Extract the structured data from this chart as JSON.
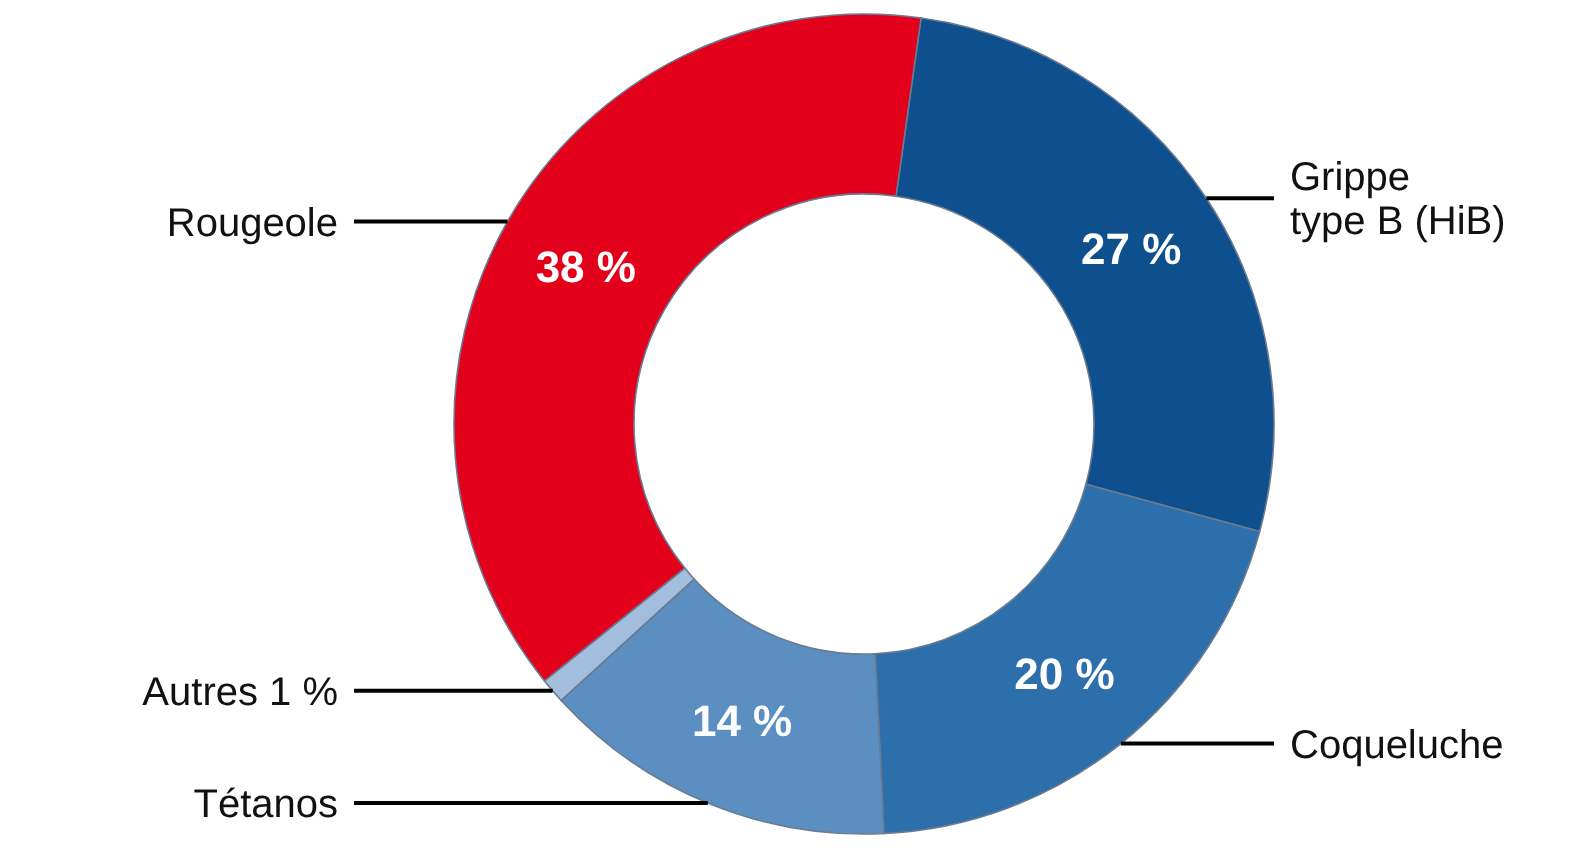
{
  "chart_data": {
    "type": "donut",
    "categories": [
      "Grippe type B (HiB)",
      "Coqueluche",
      "Tétanos",
      "Autres",
      "Rougeole"
    ],
    "values": [
      27,
      20,
      14,
      1,
      38
    ],
    "colors": [
      "#0e4f8e",
      "#2c6fab",
      "#5b8fc2",
      "#a3bedd",
      "#e2001a"
    ],
    "value_labels": [
      "27 %",
      "20 %",
      "14 %",
      "1 %",
      "38 %"
    ]
  }
}
